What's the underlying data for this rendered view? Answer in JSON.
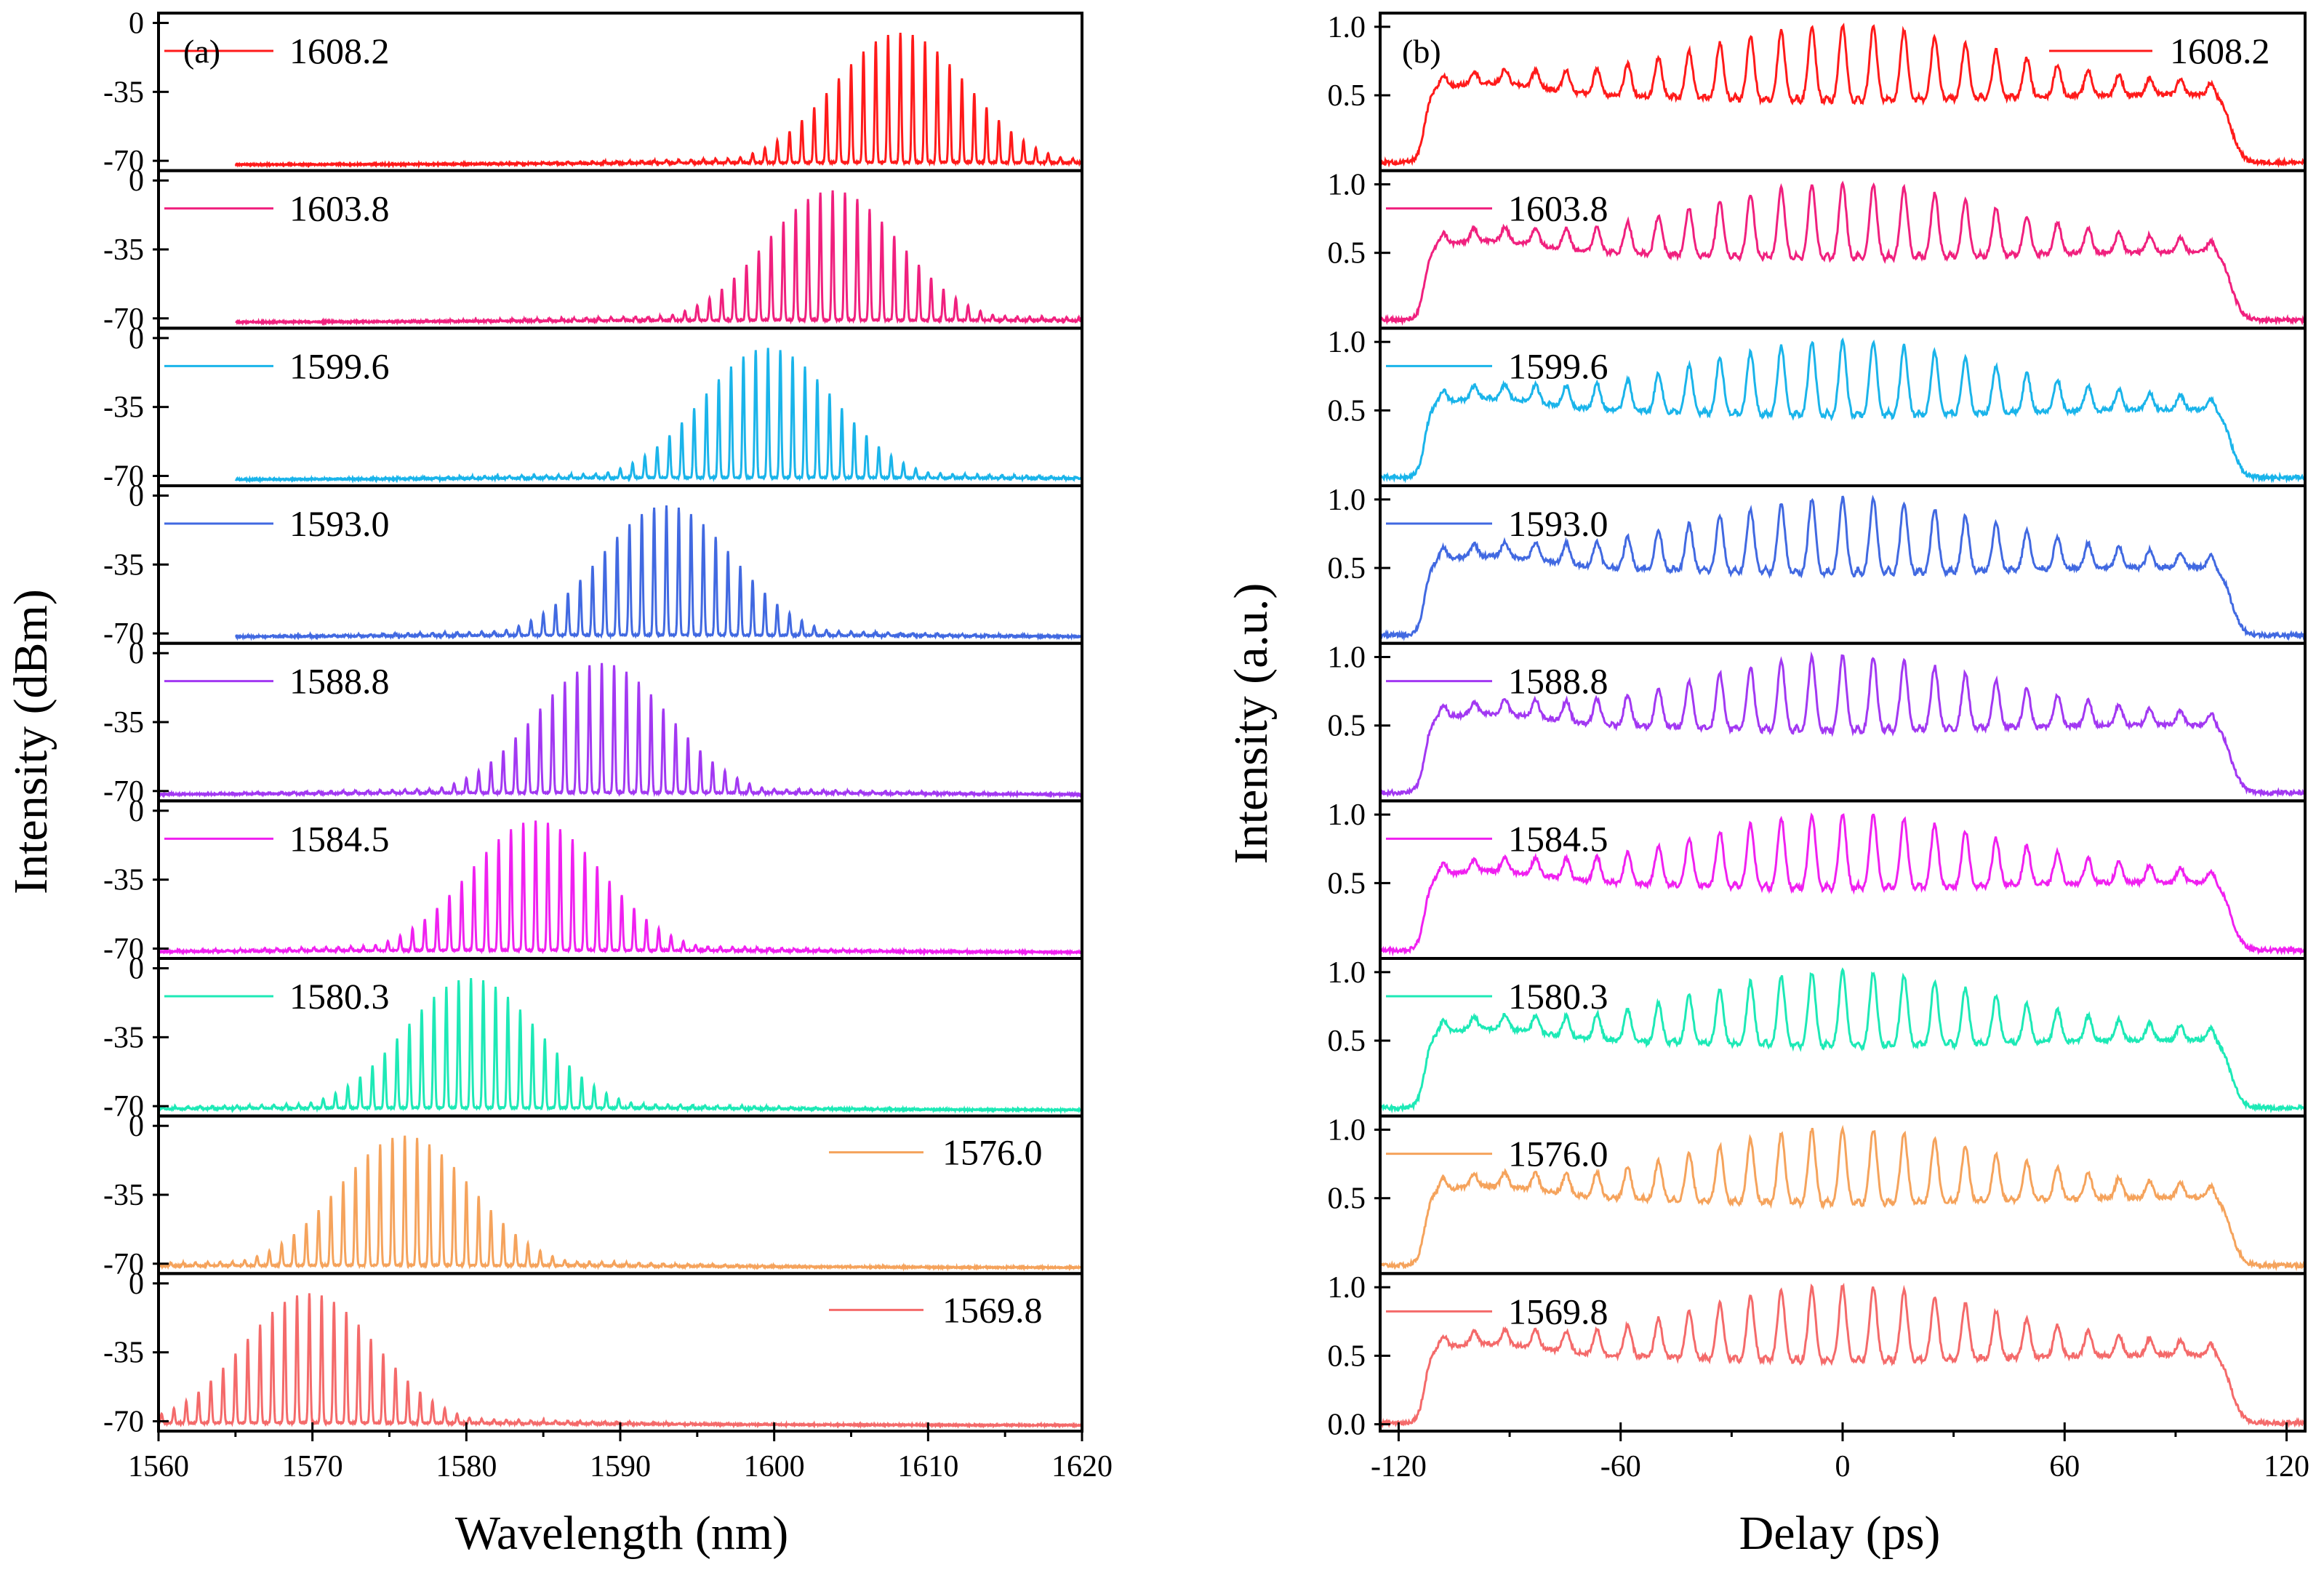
{
  "chart_data": [
    {
      "type": "line",
      "panel_label": "(a)",
      "xlabel": "Wavelength (nm)",
      "ylabel": "Intensity (dBm)",
      "xlim": [
        1560,
        1620
      ],
      "xticks": [
        "1560",
        "1570",
        "1580",
        "1590",
        "1600",
        "1610",
        "1620"
      ],
      "ylim": [
        -75,
        5
      ],
      "yticks": [
        "0",
        "-35",
        "-70"
      ],
      "series": [
        {
          "name": "1608.2",
          "center": 1608.2,
          "color": "#ff1a1a",
          "xstart": 1565,
          "legend": "top-left"
        },
        {
          "name": "1603.8",
          "center": 1603.8,
          "color": "#f0207e",
          "xstart": 1565,
          "legend": "top-left"
        },
        {
          "name": "1599.6",
          "center": 1599.6,
          "color": "#1ab4ea",
          "xstart": 1565,
          "legend": "top-left"
        },
        {
          "name": "1593.0",
          "center": 1593.0,
          "color": "#4169e1",
          "xstart": 1565,
          "legend": "top-left"
        },
        {
          "name": "1588.8",
          "center": 1588.8,
          "color": "#a238f2",
          "xstart": 1560,
          "legend": "top-left"
        },
        {
          "name": "1584.5",
          "center": 1584.5,
          "color": "#f020f0",
          "xstart": 1560,
          "legend": "top-left"
        },
        {
          "name": "1580.3",
          "center": 1580.3,
          "color": "#1de9b6",
          "xstart": 1560,
          "legend": "top-left"
        },
        {
          "name": "1576.0",
          "center": 1576.0,
          "color": "#f5a35c",
          "xstart": 1560,
          "legend": "top-right"
        },
        {
          "name": "1569.8",
          "center": 1569.8,
          "color": "#f46a6a",
          "xstart": 1560,
          "legend": "top-right"
        }
      ],
      "comb_spacing_nm": 0.8,
      "peak_dBm": -5,
      "floor_dBm": -72,
      "envelope_halfwidth_nm": 7
    },
    {
      "type": "line",
      "panel_label": "(b)",
      "xlabel": "Delay (ps)",
      "ylabel": "Intensity (a.u.)",
      "xlim": [
        -125,
        125
      ],
      "xticks": [
        "-120",
        "-60",
        "0",
        "60",
        "120"
      ],
      "ylim": [
        -0.05,
        1.1
      ],
      "yticks": [
        "0.0",
        "0.5",
        "1.0"
      ],
      "series": [
        {
          "name": "1608.2",
          "color": "#ff1a1a",
          "legend": "top-right"
        },
        {
          "name": "1603.8",
          "color": "#f0207e",
          "legend": "top-left"
        },
        {
          "name": "1599.6",
          "color": "#1ab4ea",
          "legend": "top-left"
        },
        {
          "name": "1593.0",
          "color": "#4169e1",
          "legend": "top-left"
        },
        {
          "name": "1588.8",
          "color": "#a238f2",
          "legend": "top-left"
        },
        {
          "name": "1584.5",
          "color": "#f020f0",
          "legend": "top-left"
        },
        {
          "name": "1580.3",
          "color": "#1de9b6",
          "legend": "top-left"
        },
        {
          "name": "1576.0",
          "color": "#f5a35c",
          "legend": "top-left"
        },
        {
          "name": "1569.8",
          "color": "#f46a6a",
          "legend": "top-left"
        }
      ],
      "pulse_window_ps": [
        -113,
        105
      ],
      "pulse_period_ps": 8.3,
      "plateau_level": 0.5,
      "peak_level": 1.0
    }
  ]
}
